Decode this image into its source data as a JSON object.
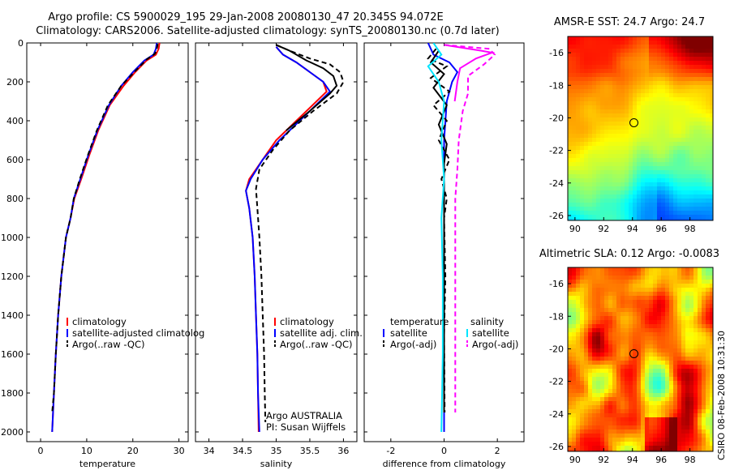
{
  "header": {
    "line1": "Argo profile: CS 5900029_195 29-Jan-2008 20080130_47 20.345S 94.072E",
    "line2": "Climatology: CARS2006. Satellite-adjusted climatology: synTS_20080130.nc (0.7d later)"
  },
  "side_stamp": "CSIRO 08-Feb-2008 10:31:30",
  "colors": {
    "climatology": "#ff0000",
    "satellite": "#0000ff",
    "argo": "#000000",
    "sal_satellite": "#00e5ff",
    "sal_argo": "#ff00ff"
  },
  "chart_data": [
    {
      "type": "line",
      "id": "temperature",
      "xlabel": "temperature",
      "ylabel": "",
      "xlim": [
        -3,
        32
      ],
      "ylim": [
        2050,
        0
      ],
      "xticks": [
        0,
        10,
        20,
        30
      ],
      "yticks": [
        0,
        200,
        400,
        600,
        800,
        1000,
        1200,
        1400,
        1600,
        1800,
        2000
      ],
      "ticklabels_y": true,
      "legend": [
        "climatology",
        "satellite-adjusted climatolog",
        "Argo(..raw -QC)"
      ],
      "series": [
        {
          "name": "climatology",
          "style": "solid",
          "color": "#ff0000",
          "points": [
            [
              25.8,
              0
            ],
            [
              25.6,
              30
            ],
            [
              25.0,
              60
            ],
            [
              23,
              90
            ],
            [
              20.5,
              150
            ],
            [
              18,
              220
            ],
            [
              15,
              320
            ],
            [
              12.5,
              450
            ],
            [
              10.5,
              580
            ],
            [
              8.8,
              700
            ],
            [
              7.3,
              800
            ],
            [
              6.5,
              900
            ],
            [
              5.5,
              1000
            ],
            [
              4.5,
              1200
            ],
            [
              3.8,
              1400
            ],
            [
              3.3,
              1600
            ],
            [
              2.9,
              1800
            ],
            [
              2.5,
              2000
            ]
          ]
        },
        {
          "name": "satellite-adjusted climatolog",
          "style": "solid",
          "color": "#0000ff",
          "points": [
            [
              25.2,
              0
            ],
            [
              25.0,
              30
            ],
            [
              24.5,
              60
            ],
            [
              22.5,
              90
            ],
            [
              20,
              150
            ],
            [
              17.5,
              220
            ],
            [
              14.8,
              320
            ],
            [
              12.3,
              450
            ],
            [
              10.3,
              580
            ],
            [
              8.6,
              700
            ],
            [
              7.2,
              800
            ],
            [
              6.5,
              900
            ],
            [
              5.5,
              1000
            ],
            [
              4.5,
              1200
            ],
            [
              3.8,
              1400
            ],
            [
              3.3,
              1600
            ],
            [
              2.9,
              1800
            ],
            [
              2.5,
              2000
            ]
          ]
        },
        {
          "name": "Argo(..raw -QC)",
          "style": "dash",
          "color": "#000000",
          "points": [
            [
              25.4,
              5
            ],
            [
              25.2,
              30
            ],
            [
              24.8,
              55
            ],
            [
              23,
              85
            ],
            [
              20.3,
              150
            ],
            [
              17.5,
              220
            ],
            [
              14.6,
              320
            ],
            [
              12.2,
              450
            ],
            [
              10.2,
              580
            ],
            [
              8.5,
              700
            ],
            [
              7.2,
              800
            ],
            [
              6.5,
              900
            ],
            [
              5.5,
              1000
            ],
            [
              4.5,
              1200
            ],
            [
              3.8,
              1400
            ],
            [
              3.3,
              1600
            ],
            [
              2.9,
              1800
            ],
            [
              2.5,
              1900
            ]
          ]
        }
      ]
    },
    {
      "type": "line",
      "id": "salinity",
      "xlabel": "salinity",
      "ylabel": "",
      "xlim": [
        33.8,
        36.2
      ],
      "ylim": [
        2050,
        0
      ],
      "xticks": [
        34,
        34.5,
        35,
        35.5,
        36
      ],
      "yticks": [
        0,
        200,
        400,
        600,
        800,
        1000,
        1200,
        1400,
        1600,
        1800,
        2000
      ],
      "ticklabels_y": false,
      "legend": [
        "climatology",
        "satellite adj. clim.",
        "Argo(..raw -QC)"
      ],
      "annotations": [
        "Argo AUSTRALIA",
        "PI: Susan Wijffels"
      ],
      "series": [
        {
          "name": "climatology",
          "style": "solid",
          "color": "#ff0000",
          "points": [
            [
              35.0,
              20
            ],
            [
              35.1,
              60
            ],
            [
              35.3,
              100
            ],
            [
              35.5,
              150
            ],
            [
              35.7,
              200
            ],
            [
              35.75,
              250
            ],
            [
              35.6,
              300
            ],
            [
              35.3,
              400
            ],
            [
              35.0,
              500
            ],
            [
              34.8,
              600
            ],
            [
              34.6,
              700
            ],
            [
              34.55,
              760
            ],
            [
              34.6,
              850
            ],
            [
              34.65,
              1000
            ],
            [
              34.68,
              1200
            ],
            [
              34.7,
              1400
            ],
            [
              34.72,
              1600
            ],
            [
              34.73,
              1800
            ],
            [
              34.74,
              2000
            ]
          ]
        },
        {
          "name": "satellite adj. clim.",
          "style": "solid",
          "color": "#0000ff",
          "points": [
            [
              35.0,
              20
            ],
            [
              35.1,
              60
            ],
            [
              35.3,
              100
            ],
            [
              35.5,
              150
            ],
            [
              35.7,
              200
            ],
            [
              35.8,
              250
            ],
            [
              35.65,
              300
            ],
            [
              35.35,
              400
            ],
            [
              35.05,
              500
            ],
            [
              34.8,
              600
            ],
            [
              34.62,
              700
            ],
            [
              34.55,
              760
            ],
            [
              34.6,
              850
            ],
            [
              34.65,
              1000
            ],
            [
              34.68,
              1200
            ],
            [
              34.7,
              1400
            ],
            [
              34.72,
              1600
            ],
            [
              34.73,
              1800
            ],
            [
              34.75,
              2000
            ]
          ]
        },
        {
          "name": "Argo(..raw -QC)",
          "style": "dash",
          "color": "#000000",
          "points": [
            [
              35.0,
              10
            ],
            [
              35.2,
              40
            ],
            [
              35.5,
              80
            ],
            [
              35.8,
              110
            ],
            [
              35.95,
              150
            ],
            [
              36.0,
              200
            ],
            [
              35.9,
              260
            ],
            [
              35.55,
              350
            ],
            [
              35.2,
              450
            ],
            [
              34.95,
              550
            ],
            [
              34.75,
              650
            ],
            [
              34.7,
              750
            ],
            [
              34.72,
              850
            ],
            [
              34.75,
              1000
            ],
            [
              34.78,
              1200
            ],
            [
              34.8,
              1400
            ],
            [
              34.82,
              1600
            ],
            [
              34.83,
              1800
            ],
            [
              34.84,
              1950
            ]
          ]
        },
        {
          "name": "",
          "style": "solid",
          "color": "#000000",
          "points": [
            [
              35.0,
              10
            ],
            [
              35.2,
              40
            ],
            [
              35.45,
              90
            ],
            [
              35.7,
              130
            ],
            [
              35.85,
              170
            ],
            [
              35.9,
              220
            ],
            [
              35.8,
              260
            ],
            [
              35.5,
              350
            ],
            [
              35.15,
              450
            ]
          ]
        }
      ]
    },
    {
      "type": "line",
      "id": "difference",
      "xlabel": "difference from climatology",
      "ylabel": "",
      "xlim": [
        -3,
        3
      ],
      "ylim": [
        2050,
        0
      ],
      "xticks": [
        -2,
        0,
        2
      ],
      "yticks": [
        0,
        200,
        400,
        600,
        800,
        1000,
        1200,
        1400,
        1600,
        1800,
        2000
      ],
      "ticklabels_y": false,
      "legend_left_title": "temperature",
      "legend_left": [
        "satellite",
        "Argo(-adj)"
      ],
      "legend_right_title": "salinity",
      "legend_right": [
        "satellite",
        "Argo(-adj)"
      ],
      "series": [
        {
          "name": "satellite",
          "style": "solid",
          "color": "#0000ff",
          "points": [
            [
              -0.6,
              0
            ],
            [
              -0.4,
              60
            ],
            [
              0.2,
              100
            ],
            [
              0.5,
              150
            ],
            [
              0.3,
              200
            ],
            [
              0.1,
              300
            ],
            [
              0,
              500
            ],
            [
              0,
              800
            ],
            [
              0,
              1200
            ],
            [
              0,
              1600
            ],
            [
              0,
              2000
            ]
          ]
        },
        {
          "name": "Argo(-adj)",
          "style": "dash",
          "color": "#000000",
          "points": [
            [
              -0.3,
              30
            ],
            [
              -0.6,
              80
            ],
            [
              0.1,
              120
            ],
            [
              -0.5,
              180
            ],
            [
              0.2,
              250
            ],
            [
              -0.4,
              320
            ],
            [
              0.1,
              400
            ],
            [
              -0.2,
              500
            ],
            [
              0.2,
              600
            ],
            [
              -0.1,
              700
            ],
            [
              0.1,
              800
            ],
            [
              0,
              900
            ],
            [
              0.05,
              1200
            ],
            [
              0,
              1500
            ],
            [
              0.02,
              1900
            ]
          ]
        },
        {
          "name": "Argo(-adj)",
          "style": "solid",
          "color": "#000000",
          "points": [
            [
              -0.2,
              40
            ],
            [
              -0.5,
              100
            ],
            [
              0,
              160
            ],
            [
              -0.4,
              230
            ],
            [
              0.1,
              320
            ],
            [
              -0.2,
              420
            ],
            [
              0.1,
              520
            ],
            [
              0,
              620
            ],
            [
              0,
              800
            ],
            [
              0,
              1000
            ],
            [
              0,
              1400
            ],
            [
              0,
              1600
            ],
            [
              0,
              1900
            ]
          ]
        },
        {
          "name": "satellite",
          "style": "solid",
          "color": "#00e5ff",
          "points": [
            [
              -0.4,
              0
            ],
            [
              -0.1,
              60
            ],
            [
              -0.6,
              120
            ],
            [
              -0.2,
              200
            ],
            [
              0,
              300
            ],
            [
              -0.1,
              500
            ],
            [
              0,
              700
            ],
            [
              -0.1,
              900
            ],
            [
              -0.05,
              1200
            ],
            [
              -0.05,
              1600
            ],
            [
              -0.1,
              2000
            ]
          ]
        },
        {
          "name": "Argo(-adj)",
          "style": "dash",
          "color": "#ff00ff",
          "points": [
            [
              0,
              10
            ],
            [
              1.7,
              30
            ],
            [
              1.9,
              60
            ],
            [
              1.5,
              110
            ],
            [
              0.9,
              170
            ],
            [
              0.9,
              260
            ],
            [
              0.7,
              350
            ],
            [
              0.55,
              500
            ],
            [
              0.5,
              650
            ],
            [
              0.42,
              800
            ],
            [
              0.42,
              1000
            ],
            [
              0.42,
              1300
            ],
            [
              0.42,
              1600
            ],
            [
              0.42,
              1900
            ]
          ]
        },
        {
          "name": "Argo(-adj)",
          "style": "solid",
          "color": "#ff00ff",
          "points": [
            [
              0,
              10
            ],
            [
              1.4,
              40
            ],
            [
              1.8,
              50
            ],
            [
              1.2,
              80
            ],
            [
              0.6,
              130
            ],
            [
              0.5,
              200
            ],
            [
              0.4,
              300
            ]
          ]
        }
      ]
    },
    {
      "type": "heatmap",
      "id": "sst-map",
      "title": "AMSR-E SST: 24.7  Argo: 24.7",
      "xticks": [
        90,
        92,
        94,
        96,
        98
      ],
      "yticks": [
        -16,
        -18,
        -20,
        -22,
        -24,
        -26
      ],
      "xlim": [
        89.5,
        99.6
      ],
      "ylim": [
        -26.3,
        -15
      ],
      "marker": [
        94.1,
        -20.3
      ]
    },
    {
      "type": "heatmap",
      "id": "sla-map",
      "title": "Altimetric SLA: 0.12  Argo: -0.0083",
      "xticks": [
        90,
        92,
        94,
        96,
        98
      ],
      "yticks": [
        -16,
        -18,
        -20,
        -22,
        -24,
        -26
      ],
      "xlim": [
        89.5,
        99.6
      ],
      "ylim": [
        -26.3,
        -15
      ],
      "marker": [
        94.1,
        -20.3
      ]
    }
  ]
}
